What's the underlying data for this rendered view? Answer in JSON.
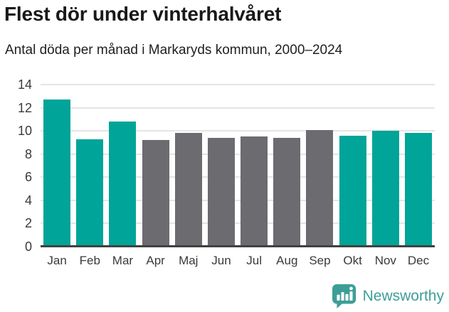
{
  "header": {
    "title": "Flest dör under vinterhalvåret",
    "subtitle": "Antal döda per månad i Markaryds kommun, 2000–2024"
  },
  "chart_data": {
    "type": "bar",
    "title": "Flest dör under vinterhalvåret",
    "subtitle": "Antal döda per månad i Markaryds kommun, 2000–2024",
    "categories": [
      "Jan",
      "Feb",
      "Mar",
      "Apr",
      "Maj",
      "Jun",
      "Jul",
      "Aug",
      "Sep",
      "Okt",
      "Nov",
      "Dec"
    ],
    "values": [
      12.7,
      9.3,
      10.8,
      9.2,
      9.8,
      9.4,
      9.5,
      9.4,
      10.1,
      9.6,
      10.0,
      9.8
    ],
    "bar_colors": [
      "#00a498",
      "#00a498",
      "#00a498",
      "#6b6b70",
      "#6b6b70",
      "#6b6b70",
      "#6b6b70",
      "#6b6b70",
      "#6b6b70",
      "#00a498",
      "#00a498",
      "#00a498"
    ],
    "highlight_meaning": "teal = winter half-year months, gray = summer half-year months",
    "xlabel": "",
    "ylabel": "",
    "ylim": [
      0,
      14
    ],
    "yticks": [
      0,
      2,
      4,
      6,
      8,
      10,
      12,
      14
    ],
    "grid": true,
    "legend": null
  },
  "colors": {
    "accent_teal": "#00a498",
    "bar_gray": "#6b6b70",
    "gridline": "#e4e4e4",
    "axis_line": "#404040",
    "logo_teal": "#3d9e97"
  },
  "footer": {
    "brand": "Newsworthy",
    "logo_icon": "bar-chart-speech-bubble-icon"
  }
}
